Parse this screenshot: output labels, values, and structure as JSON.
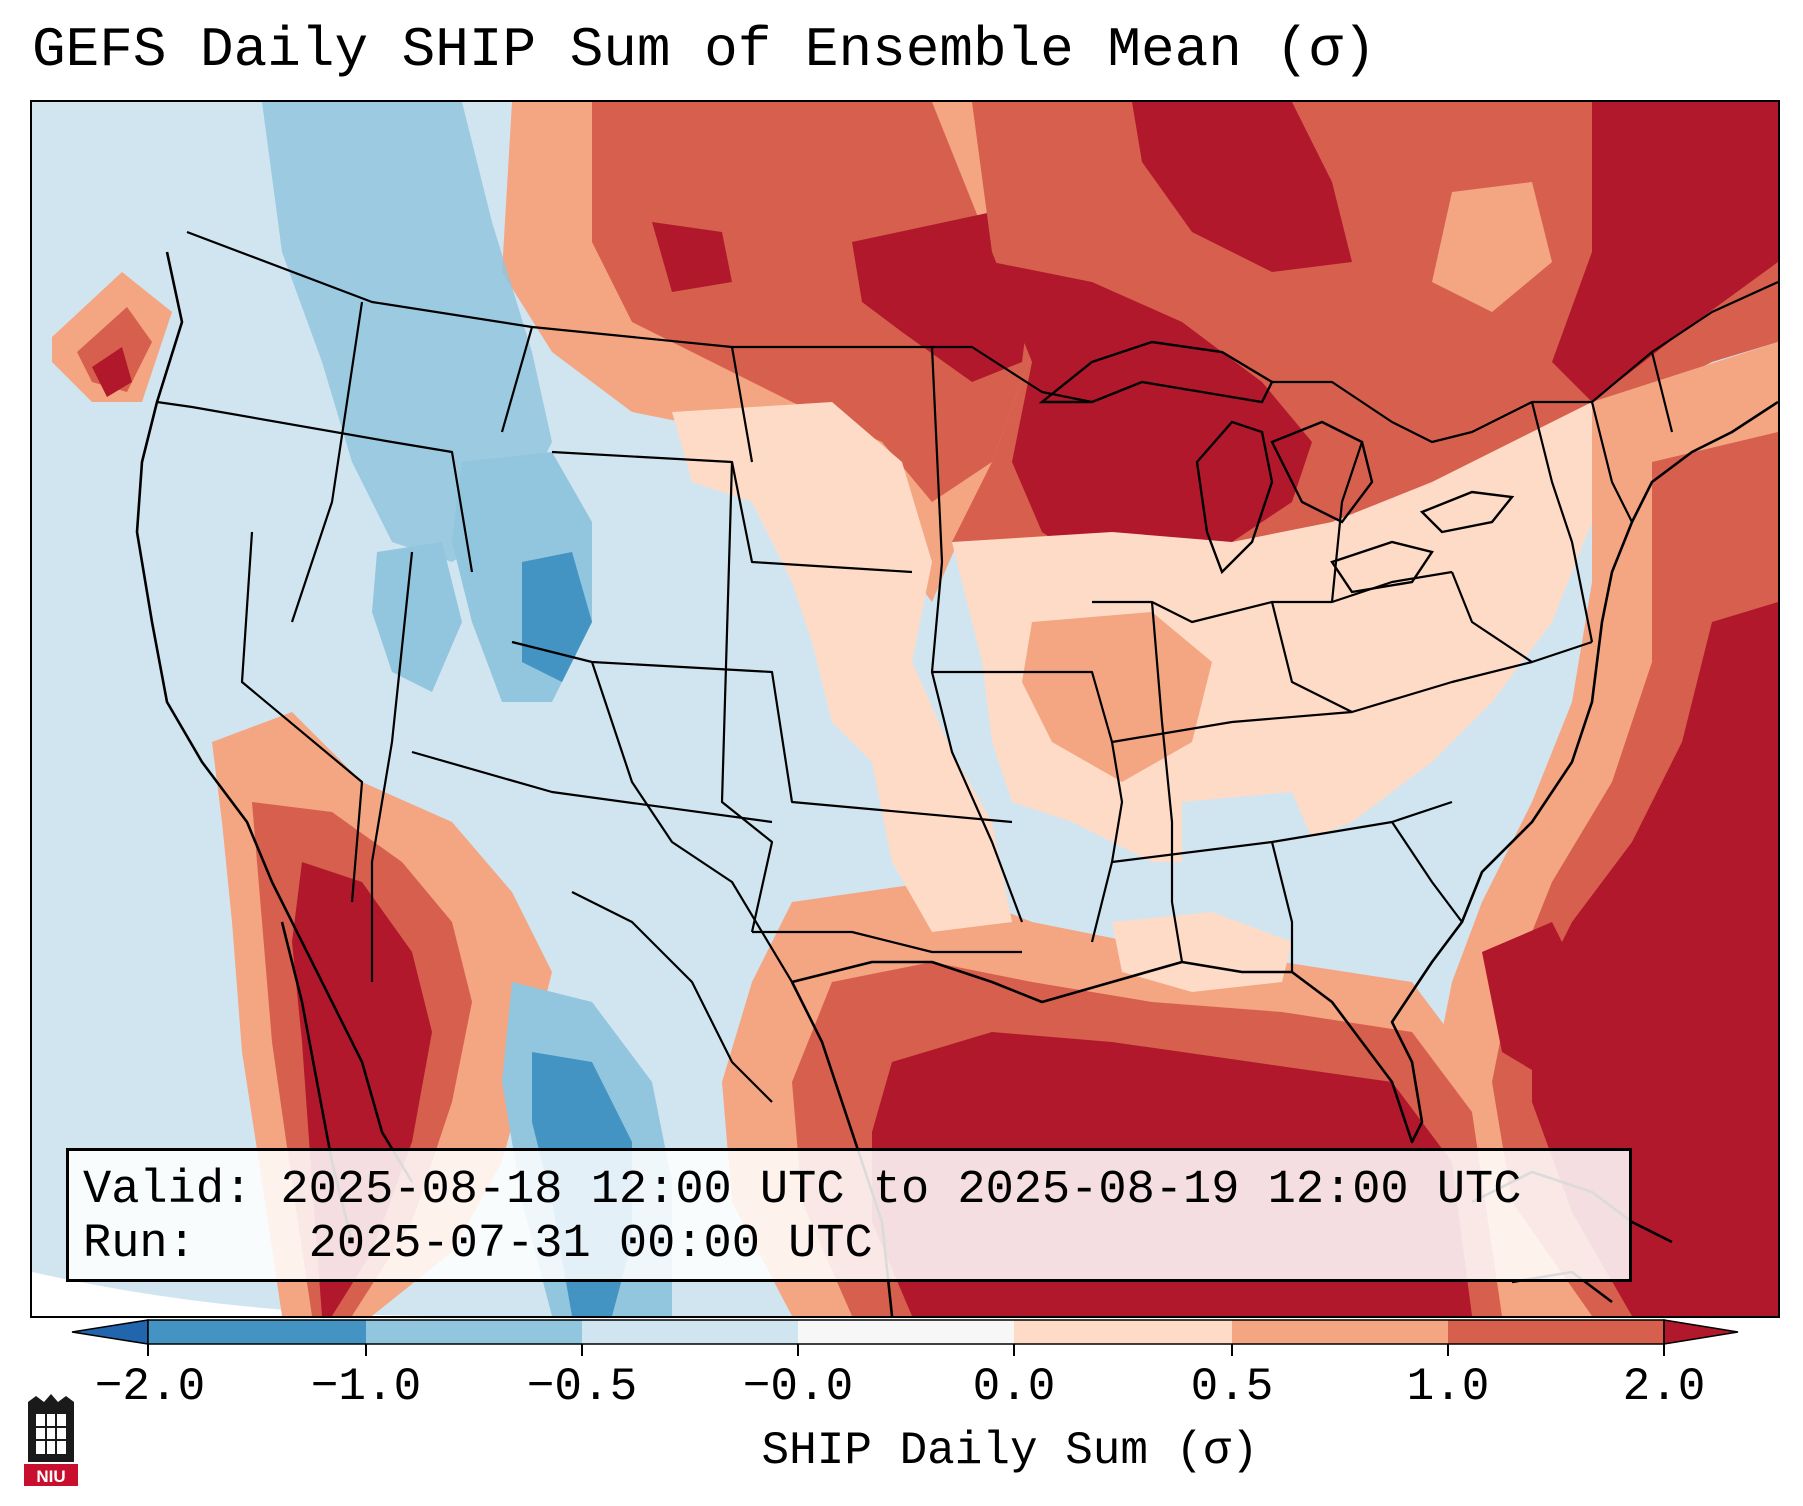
{
  "title": "GEFS Daily SHIP Sum of Ensemble Mean (σ)",
  "info": {
    "valid_label": "Valid:",
    "valid_value": "2025-08-18 12:00 UTC to 2025-08-19 12:00 UTC",
    "run_label": "Run:",
    "run_value": "2025-07-31 00:00 UTC"
  },
  "colorbar": {
    "label": "SHIP Daily Sum (σ)",
    "ticks": [
      "−2.0",
      "−1.0",
      "−0.5",
      "−0.0",
      "0.0",
      "0.5",
      "1.0",
      "2.0"
    ],
    "colors": [
      "#2166ac",
      "#4393c3",
      "#92c5de",
      "#d1e5f0",
      "#f7f7f7",
      "#fddbc7",
      "#f4a582",
      "#d6604d",
      "#b2182b"
    ]
  },
  "logo": {
    "text": "NIU"
  }
}
